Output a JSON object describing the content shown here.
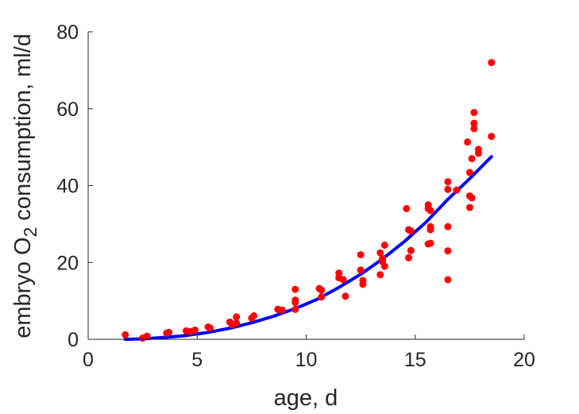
{
  "chart_data": {
    "type": "scatter",
    "title": "",
    "xlabel": "age, d",
    "ylabel": {
      "part1": "embryo O",
      "subscript": "2",
      "part2": " consumption, ml/d"
    },
    "xlim": [
      0,
      20
    ],
    "ylim": [
      0,
      80
    ],
    "xticks": [
      "0",
      "5",
      "10",
      "15",
      "20"
    ],
    "yticks": [
      "0",
      "20",
      "40",
      "60",
      "80"
    ],
    "grid": false,
    "legend": "none",
    "series": [
      {
        "kind": "points",
        "color": "#ff0000",
        "points": [
          [
            1.7,
            1.2
          ],
          [
            2.5,
            0.3
          ],
          [
            2.7,
            0.8
          ],
          [
            3.6,
            1.6
          ],
          [
            3.7,
            1.8
          ],
          [
            4.5,
            2.2
          ],
          [
            4.7,
            2.0
          ],
          [
            4.9,
            2.4
          ],
          [
            5.5,
            3.2
          ],
          [
            5.6,
            2.9
          ],
          [
            6.5,
            4.5
          ],
          [
            6.6,
            3.8
          ],
          [
            6.8,
            5.8
          ],
          [
            6.8,
            4.2
          ],
          [
            7.5,
            5.5
          ],
          [
            7.6,
            6.1
          ],
          [
            8.7,
            7.8
          ],
          [
            8.9,
            7.6
          ],
          [
            9.5,
            13.0
          ],
          [
            9.5,
            10.2
          ],
          [
            9.5,
            9.6
          ],
          [
            9.5,
            7.8
          ],
          [
            10.6,
            13.2
          ],
          [
            10.7,
            12.8
          ],
          [
            10.7,
            11.0
          ],
          [
            11.5,
            16.0
          ],
          [
            11.5,
            17.2
          ],
          [
            11.7,
            15.5
          ],
          [
            11.8,
            11.2
          ],
          [
            12.5,
            22.0
          ],
          [
            12.5,
            18.0
          ],
          [
            12.6,
            15.3
          ],
          [
            12.6,
            14.3
          ],
          [
            13.4,
            22.5
          ],
          [
            13.4,
            16.8
          ],
          [
            13.5,
            21.0
          ],
          [
            13.5,
            20.2
          ],
          [
            13.6,
            24.5
          ],
          [
            13.6,
            19.0
          ],
          [
            14.6,
            34.0
          ],
          [
            14.7,
            28.5
          ],
          [
            14.7,
            21.2
          ],
          [
            14.8,
            28.2
          ],
          [
            14.8,
            23.1
          ],
          [
            15.6,
            35.0
          ],
          [
            15.6,
            34.0
          ],
          [
            15.7,
            33.5
          ],
          [
            15.7,
            29.3
          ],
          [
            15.7,
            28.5
          ],
          [
            15.7,
            25.0
          ],
          [
            15.6,
            24.8
          ],
          [
            16.5,
            41.0
          ],
          [
            16.5,
            39.0
          ],
          [
            16.5,
            29.3
          ],
          [
            16.5,
            23.0
          ],
          [
            16.5,
            15.5
          ],
          [
            16.9,
            38.8
          ],
          [
            17.4,
            51.3
          ],
          [
            17.5,
            43.4
          ],
          [
            17.5,
            37.3
          ],
          [
            17.5,
            34.3
          ],
          [
            17.6,
            36.8
          ],
          [
            17.6,
            47.0
          ],
          [
            17.7,
            59.0
          ],
          [
            17.7,
            56.2
          ],
          [
            17.7,
            54.8
          ],
          [
            17.9,
            49.4
          ],
          [
            17.9,
            48.4
          ],
          [
            18.5,
            72.0
          ],
          [
            18.5,
            52.8
          ]
        ]
      },
      {
        "kind": "fit-curve",
        "color": "#0000ff",
        "x": [
          1.7,
          2.5,
          3.5,
          4.5,
          5.5,
          6.5,
          7.5,
          8.5,
          9.5,
          10.5,
          11.5,
          12.5,
          13.5,
          14.5,
          15.5,
          16.5,
          17.5,
          18.5
        ],
        "y": [
          0,
          0.1,
          0.5,
          1.0,
          1.8,
          2.9,
          4.3,
          6.0,
          8.0,
          10.4,
          13.5,
          16.9,
          20.9,
          25.4,
          30.5,
          36.4,
          41.8,
          47.5
        ]
      }
    ]
  }
}
